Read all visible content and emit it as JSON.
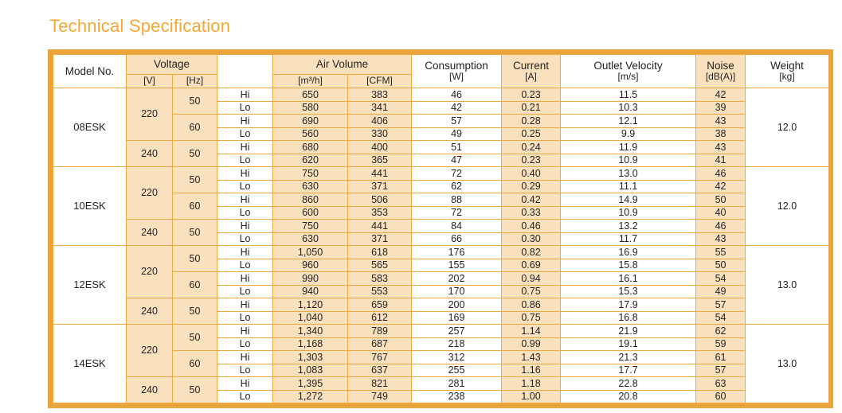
{
  "title": "Technical Specification",
  "colors": {
    "frame": "#EBA43C",
    "grid": "#EFA93F",
    "peach": "#F9E1BE",
    "title": "#F5A733",
    "text": "#231F20"
  },
  "table": {
    "headers": {
      "model": "Model No.",
      "voltage": {
        "label": "Voltage",
        "units": [
          "[V]",
          "[Hz]"
        ]
      },
      "speed": "",
      "air_volume": {
        "label": "Air Volume",
        "units": [
          "[m³/h]",
          "[CFM]"
        ]
      },
      "consumption": {
        "label": "Consumption",
        "unit": "[W]"
      },
      "current": {
        "label": "Current",
        "unit": "[A]"
      },
      "outlet_velocity": {
        "label": "Outlet Velocity",
        "unit": "[m/s]"
      },
      "noise": {
        "label": "Noise",
        "unit": "[dB(A)]"
      },
      "weight": {
        "label": "Weight",
        "unit": "[kg]"
      }
    },
    "models": [
      {
        "name": "08ESK",
        "weight": "12.0",
        "voltages": [
          {
            "v": "220",
            "freqs": [
              {
                "hz": "50",
                "rows": [
                  {
                    "speed": "Hi",
                    "m3h": "650",
                    "cfm": "383",
                    "w": "46",
                    "a": "0.23",
                    "ms": "11.5",
                    "db": "42"
                  },
                  {
                    "speed": "Lo",
                    "m3h": "580",
                    "cfm": "341",
                    "w": "42",
                    "a": "0.21",
                    "ms": "10.3",
                    "db": "39"
                  }
                ]
              },
              {
                "hz": "60",
                "rows": [
                  {
                    "speed": "Hi",
                    "m3h": "690",
                    "cfm": "406",
                    "w": "57",
                    "a": "0.28",
                    "ms": "12.1",
                    "db": "43"
                  },
                  {
                    "speed": "Lo",
                    "m3h": "560",
                    "cfm": "330",
                    "w": "49",
                    "a": "0.25",
                    "ms": "9.9",
                    "db": "38"
                  }
                ]
              }
            ]
          },
          {
            "v": "240",
            "freqs": [
              {
                "hz": "50",
                "rows": [
                  {
                    "speed": "Hi",
                    "m3h": "680",
                    "cfm": "400",
                    "w": "51",
                    "a": "0.24",
                    "ms": "11.9",
                    "db": "43"
                  },
                  {
                    "speed": "Lo",
                    "m3h": "620",
                    "cfm": "365",
                    "w": "47",
                    "a": "0.23",
                    "ms": "10.9",
                    "db": "41"
                  }
                ]
              }
            ]
          }
        ]
      },
      {
        "name": "10ESK",
        "weight": "12.0",
        "voltages": [
          {
            "v": "220",
            "freqs": [
              {
                "hz": "50",
                "rows": [
                  {
                    "speed": "Hi",
                    "m3h": "750",
                    "cfm": "441",
                    "w": "72",
                    "a": "0.40",
                    "ms": "13.0",
                    "db": "46"
                  },
                  {
                    "speed": "Lo",
                    "m3h": "630",
                    "cfm": "371",
                    "w": "62",
                    "a": "0.29",
                    "ms": "11.1",
                    "db": "42"
                  }
                ]
              },
              {
                "hz": "60",
                "rows": [
                  {
                    "speed": "Hi",
                    "m3h": "860",
                    "cfm": "506",
                    "w": "88",
                    "a": "0.42",
                    "ms": "14.9",
                    "db": "50"
                  },
                  {
                    "speed": "Lo",
                    "m3h": "600",
                    "cfm": "353",
                    "w": "72",
                    "a": "0.33",
                    "ms": "10.9",
                    "db": "40"
                  }
                ]
              }
            ]
          },
          {
            "v": "240",
            "freqs": [
              {
                "hz": "50",
                "rows": [
                  {
                    "speed": "Hi",
                    "m3h": "750",
                    "cfm": "441",
                    "w": "84",
                    "a": "0.46",
                    "ms": "13.2",
                    "db": "46"
                  },
                  {
                    "speed": "Lo",
                    "m3h": "630",
                    "cfm": "371",
                    "w": "66",
                    "a": "0.30",
                    "ms": "11.7",
                    "db": "43"
                  }
                ]
              }
            ]
          }
        ]
      },
      {
        "name": "12ESK",
        "weight": "13.0",
        "voltages": [
          {
            "v": "220",
            "freqs": [
              {
                "hz": "50",
                "rows": [
                  {
                    "speed": "Hi",
                    "m3h": "1,050",
                    "cfm": "618",
                    "w": "176",
                    "a": "0.82",
                    "ms": "16.9",
                    "db": "55"
                  },
                  {
                    "speed": "Lo",
                    "m3h": "960",
                    "cfm": "565",
                    "w": "155",
                    "a": "0.69",
                    "ms": "15.8",
                    "db": "50"
                  }
                ]
              },
              {
                "hz": "60",
                "rows": [
                  {
                    "speed": "Hi",
                    "m3h": "990",
                    "cfm": "583",
                    "w": "202",
                    "a": "0.94",
                    "ms": "16.1",
                    "db": "54"
                  },
                  {
                    "speed": "Lo",
                    "m3h": "940",
                    "cfm": "553",
                    "w": "170",
                    "a": "0.75",
                    "ms": "15.3",
                    "db": "49"
                  }
                ]
              }
            ]
          },
          {
            "v": "240",
            "freqs": [
              {
                "hz": "50",
                "rows": [
                  {
                    "speed": "Hi",
                    "m3h": "1,120",
                    "cfm": "659",
                    "w": "200",
                    "a": "0.86",
                    "ms": "17.9",
                    "db": "57"
                  },
                  {
                    "speed": "Lo",
                    "m3h": "1,040",
                    "cfm": "612",
                    "w": "169",
                    "a": "0.75",
                    "ms": "16.8",
                    "db": "54"
                  }
                ]
              }
            ]
          }
        ]
      },
      {
        "name": "14ESK",
        "weight": "13.0",
        "voltages": [
          {
            "v": "220",
            "freqs": [
              {
                "hz": "50",
                "rows": [
                  {
                    "speed": "Hi",
                    "m3h": "1,340",
                    "cfm": "789",
                    "w": "257",
                    "a": "1.14",
                    "ms": "21.9",
                    "db": "62"
                  },
                  {
                    "speed": "Lo",
                    "m3h": "1,168",
                    "cfm": "687",
                    "w": "218",
                    "a": "0.99",
                    "ms": "19.1",
                    "db": "59"
                  }
                ]
              },
              {
                "hz": "60",
                "rows": [
                  {
                    "speed": "Hi",
                    "m3h": "1,303",
                    "cfm": "767",
                    "w": "312",
                    "a": "1.43",
                    "ms": "21.3",
                    "db": "61"
                  },
                  {
                    "speed": "Lo",
                    "m3h": "1,083",
                    "cfm": "637",
                    "w": "255",
                    "a": "1.16",
                    "ms": "17.7",
                    "db": "57"
                  }
                ]
              }
            ]
          },
          {
            "v": "240",
            "freqs": [
              {
                "hz": "50",
                "rows": [
                  {
                    "speed": "Hi",
                    "m3h": "1,395",
                    "cfm": "821",
                    "w": "281",
                    "a": "1.18",
                    "ms": "22.8",
                    "db": "63"
                  },
                  {
                    "speed": "Lo",
                    "m3h": "1,272",
                    "cfm": "749",
                    "w": "238",
                    "a": "1.00",
                    "ms": "20.8",
                    "db": "60"
                  }
                ]
              }
            ]
          }
        ]
      }
    ]
  }
}
